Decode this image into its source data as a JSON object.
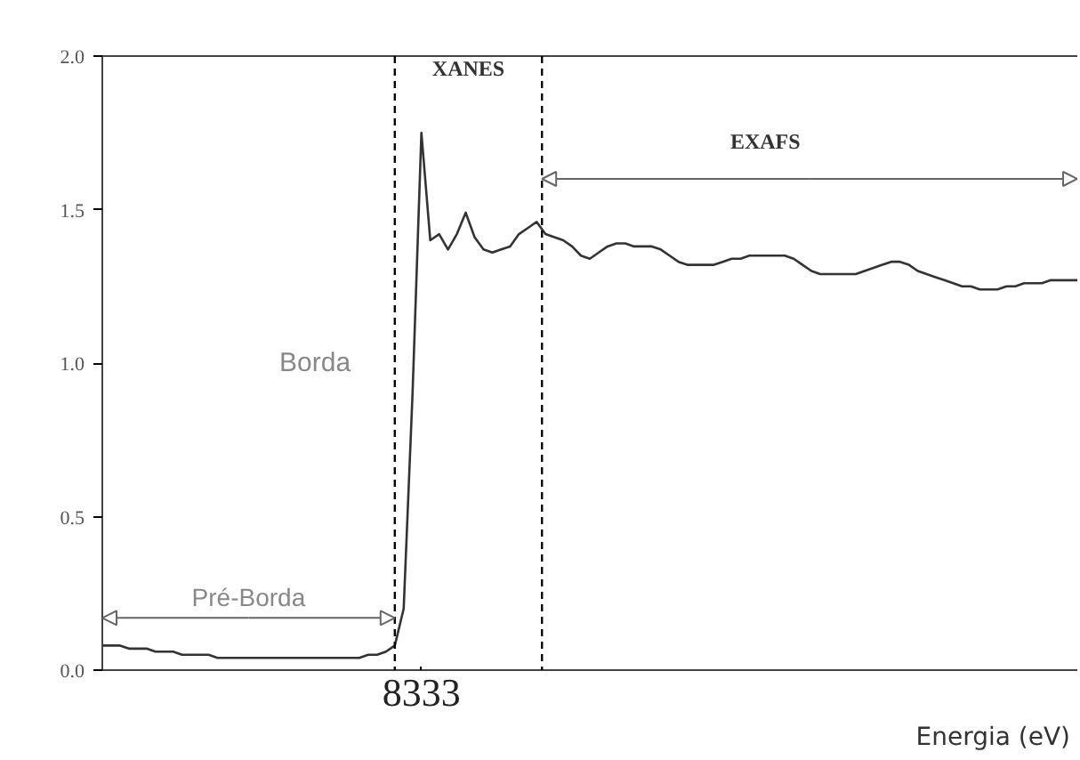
{
  "chart_data": {
    "type": "line",
    "xlabel": "Energia (eV)",
    "categories": [
      null,
      null,
      null,
      null,
      null,
      null,
      null,
      null,
      null,
      null,
      null,
      null,
      null,
      null,
      null,
      null,
      null,
      null,
      null,
      null,
      null,
      null,
      null,
      null,
      null,
      null,
      null,
      null,
      null,
      null,
      null,
      null,
      null,
      null,
      null,
      null,
      "8333",
      null,
      null,
      null,
      null,
      null,
      null,
      null,
      null,
      null,
      null,
      null,
      null,
      null,
      null,
      null,
      null,
      null,
      null,
      null,
      null,
      null,
      null,
      null,
      null,
      null,
      null,
      null,
      null,
      null,
      null,
      null,
      null,
      null,
      null,
      null,
      null,
      null,
      null,
      null,
      null,
      null,
      null,
      null,
      null,
      null,
      null,
      null,
      null,
      null,
      null,
      null,
      null,
      null,
      null,
      null,
      null,
      null,
      null,
      null,
      null,
      null,
      null,
      null,
      null,
      null,
      null,
      null,
      null,
      null,
      null,
      null,
      null,
      null,
      null
    ],
    "series": [
      {
        "color": "#333333",
        "values": [
          0.08,
          0.08,
          0.08,
          0.07,
          0.07,
          0.07,
          0.06,
          0.06,
          0.06,
          0.05,
          0.05,
          0.05,
          0.05,
          0.04,
          0.04,
          0.04,
          0.04,
          0.04,
          0.04,
          0.04,
          0.04,
          0.04,
          0.04,
          0.04,
          0.04,
          0.04,
          0.04,
          0.04,
          0.04,
          0.04,
          0.05,
          0.05,
          0.06,
          0.08,
          0.2,
          0.9,
          1.75,
          1.4,
          1.42,
          1.37,
          1.42,
          1.49,
          1.41,
          1.37,
          1.36,
          1.37,
          1.38,
          1.42,
          1.44,
          1.46,
          1.42,
          1.41,
          1.4,
          1.38,
          1.35,
          1.34,
          1.36,
          1.38,
          1.39,
          1.39,
          1.38,
          1.38,
          1.38,
          1.37,
          1.35,
          1.33,
          1.32,
          1.32,
          1.32,
          1.32,
          1.33,
          1.34,
          1.34,
          1.35,
          1.35,
          1.35,
          1.35,
          1.35,
          1.34,
          1.32,
          1.3,
          1.29,
          1.29,
          1.29,
          1.29,
          1.29,
          1.3,
          1.31,
          1.32,
          1.33,
          1.33,
          1.32,
          1.3,
          1.29,
          1.28,
          1.27,
          1.26,
          1.25,
          1.25,
          1.24,
          1.24,
          1.24,
          1.25,
          1.25,
          1.26,
          1.26,
          1.26,
          1.27,
          1.27,
          1.27,
          1.27
        ]
      }
    ],
    "ylim": [
      0,
      2
    ],
    "yticks": [
      {
        "value": 0,
        "label": "0.0"
      },
      {
        "value": 0.5,
        "label": "0.5"
      },
      {
        "value": 1,
        "label": "1.0"
      },
      {
        "value": 1.5,
        "label": "1.5"
      },
      {
        "value": 2,
        "label": "2.0"
      }
    ],
    "annotations": [
      "Pré-Borda",
      "Borda",
      "XANES",
      "EXAFS"
    ],
    "grid": false,
    "marker": "none",
    "line_style": "solid"
  }
}
